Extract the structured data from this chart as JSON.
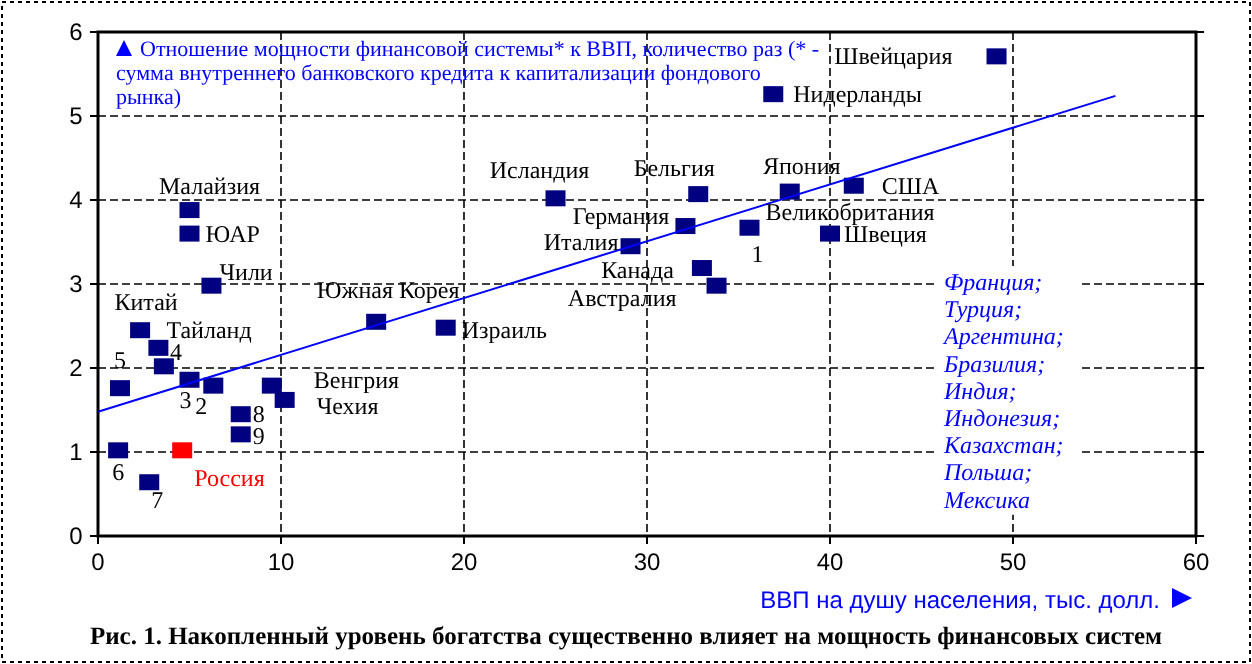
{
  "chart_data": {
    "type": "scatter",
    "title": "Рис. 1. Накопленный уровень богатства существенно влияет на мощность финансовых систем",
    "xlabel": "ВВП на душу населения, тыс. долл.",
    "ylabel": "Отношение мощности финансовой системы* к ВВП, количество раз (* - сумма внутреннего банковского кредита к капитализации фондового рынка)",
    "xlim": [
      0,
      60
    ],
    "xticks": [
      0,
      10,
      20,
      30,
      40,
      50,
      60
    ],
    "ylim": [
      0,
      6
    ],
    "yticks": [
      0,
      1,
      2,
      3,
      4,
      5,
      6
    ],
    "grid": true,
    "marker": "square",
    "series": [
      {
        "color": "#000080",
        "x": [
          49.1,
          36.9,
          32.8,
          37.8,
          41.3,
          35.6,
          40.0,
          32.1,
          29.1,
          33.0,
          33.8,
          25.0,
          5.0,
          5.0,
          6.2,
          15.2,
          19.0,
          2.3,
          3.3,
          3.6,
          1.2,
          5.0,
          6.3,
          9.5,
          10.2,
          7.8,
          7.8,
          1.1,
          2.8
        ],
        "values": [
          5.71,
          5.26,
          4.07,
          4.1,
          4.17,
          3.67,
          3.6,
          3.69,
          3.45,
          3.19,
          2.98,
          4.02,
          3.88,
          3.6,
          2.98,
          2.55,
          2.48,
          2.45,
          2.24,
          2.02,
          1.76,
          1.86,
          1.79,
          1.79,
          1.62,
          1.45,
          1.21,
          1.02,
          0.64
        ]
      },
      {
        "name": "Россия",
        "color": "#ff0000",
        "x": [
          4.6
        ],
        "values": [
          1.02
        ]
      },
      {
        "type": "line",
        "color": "#0000ff",
        "marker": "none",
        "x": [
          0,
          55.6
        ],
        "values": [
          1.48,
          5.24
        ]
      }
    ],
    "annotations": [
      "Франция;\nТурция;\nАргентина;\nБразилия;\nИндия;\nИндонезия;\nКазахстан;\nПольша;\nМексика",
      {
        "text": "Швейцария",
        "x": 49.1,
        "y": 5.71
      },
      {
        "text": "Нидерланды",
        "x": 36.9,
        "y": 5.26
      },
      {
        "text": "Бельгия",
        "x": 32.8,
        "y": 4.07
      },
      {
        "text": "Япония",
        "x": 37.8,
        "y": 4.1
      },
      {
        "text": "США",
        "x": 41.3,
        "y": 4.17
      },
      {
        "text": "Великобритания",
        "x": 35.6,
        "y": 3.67
      },
      {
        "text": "1",
        "x": 35.6,
        "y": 3.67
      },
      {
        "text": "Швеция",
        "x": 40.0,
        "y": 3.6
      },
      {
        "text": "Германия",
        "x": 32.1,
        "y": 3.69
      },
      {
        "text": "Италия",
        "x": 29.1,
        "y": 3.45
      },
      {
        "text": "Канада",
        "x": 33.0,
        "y": 3.19
      },
      {
        "text": "Австралия",
        "x": 33.8,
        "y": 2.98
      },
      {
        "text": "Исландия",
        "x": 25.0,
        "y": 4.02
      },
      {
        "text": "Малайзия",
        "x": 5.0,
        "y": 3.88
      },
      {
        "text": "ЮАР",
        "x": 5.0,
        "y": 3.6
      },
      {
        "text": "Чили",
        "x": 6.2,
        "y": 2.98
      },
      {
        "text": "Южная Корея",
        "x": 15.2,
        "y": 2.55
      },
      {
        "text": "Израиль",
        "x": 19.0,
        "y": 2.48
      },
      {
        "text": "Китай",
        "x": 2.3,
        "y": 2.45
      },
      {
        "text": "Тайланд",
        "x": 3.3,
        "y": 2.24
      },
      {
        "text": "4",
        "x": 3.6,
        "y": 2.02
      },
      {
        "text": "5",
        "x": 1.2,
        "y": 1.76
      },
      {
        "text": "3",
        "x": 5.0,
        "y": 1.86
      },
      {
        "text": "2",
        "x": 6.3,
        "y": 1.79
      },
      {
        "text": "Венгрия",
        "x": 9.5,
        "y": 1.79
      },
      {
        "text": "Чехия",
        "x": 10.2,
        "y": 1.62
      },
      {
        "text": "8",
        "x": 7.8,
        "y": 1.45
      },
      {
        "text": "9",
        "x": 7.8,
        "y": 1.21
      },
      {
        "text": "6",
        "x": 1.1,
        "y": 1.02
      },
      {
        "text": "7",
        "x": 2.8,
        "y": 0.64
      }
    ]
  }
}
